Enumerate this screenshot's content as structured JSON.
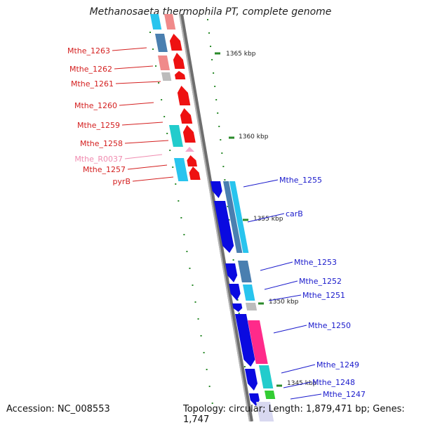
{
  "title": "Methanosaeta thermophila PT, complete genome",
  "footer": {
    "accession": "Accession: NC_008553",
    "topology": "Topology: circular; Length: 1,879,471 bp; Genes: 1,747"
  },
  "colors": {
    "axis": "#8c8c8c",
    "tick": "#2a8a2a",
    "label_minus": "#d42020",
    "label_minus_rna": "#f08cb0",
    "label_plus": "#1a1acc",
    "cds_red": "#ee1111",
    "cds_blue": "#0a0ae0",
    "cog_cyan": "#28c4ee",
    "cog_steel": "#4a7fb0",
    "cog_salmon": "#f08a8a",
    "cog_grey": "#bcbcbc",
    "cog_teal": "#22cccc",
    "cog_pink": "#ff2a8a",
    "cog_green": "#33cc33"
  },
  "scale_labels": [
    "1365 kbp",
    "1360 kbp",
    "1355 kbp",
    "1350 kbp",
    "1345 kbp"
  ],
  "genes_minus": [
    {
      "label": "Mthe_1263",
      "type": "CDS"
    },
    {
      "label": "Mthe_1262",
      "type": "CDS"
    },
    {
      "label": "Mthe_1261",
      "type": "CDS"
    },
    {
      "label": "Mthe_1260",
      "type": "CDS"
    },
    {
      "label": "Mthe_1259",
      "type": "CDS"
    },
    {
      "label": "Mthe_1258",
      "type": "CDS"
    },
    {
      "label": "Mthe_R0037",
      "type": "tRNA"
    },
    {
      "label": "Mthe_1257",
      "type": "CDS"
    },
    {
      "label": "pyrB",
      "type": "CDS"
    }
  ],
  "genes_plus": [
    {
      "label": "Mthe_1255",
      "type": "CDS"
    },
    {
      "label": "carB",
      "type": "CDS"
    },
    {
      "label": "Mthe_1253",
      "type": "CDS"
    },
    {
      "label": "Mthe_1252",
      "type": "CDS"
    },
    {
      "label": "Mthe_1251",
      "type": "CDS"
    },
    {
      "label": "Mthe_1250",
      "type": "CDS"
    },
    {
      "label": "Mthe_1249",
      "type": "CDS"
    },
    {
      "label": "Mthe_1248",
      "type": "CDS"
    },
    {
      "label": "Mthe_1247",
      "type": "CDS"
    }
  ]
}
